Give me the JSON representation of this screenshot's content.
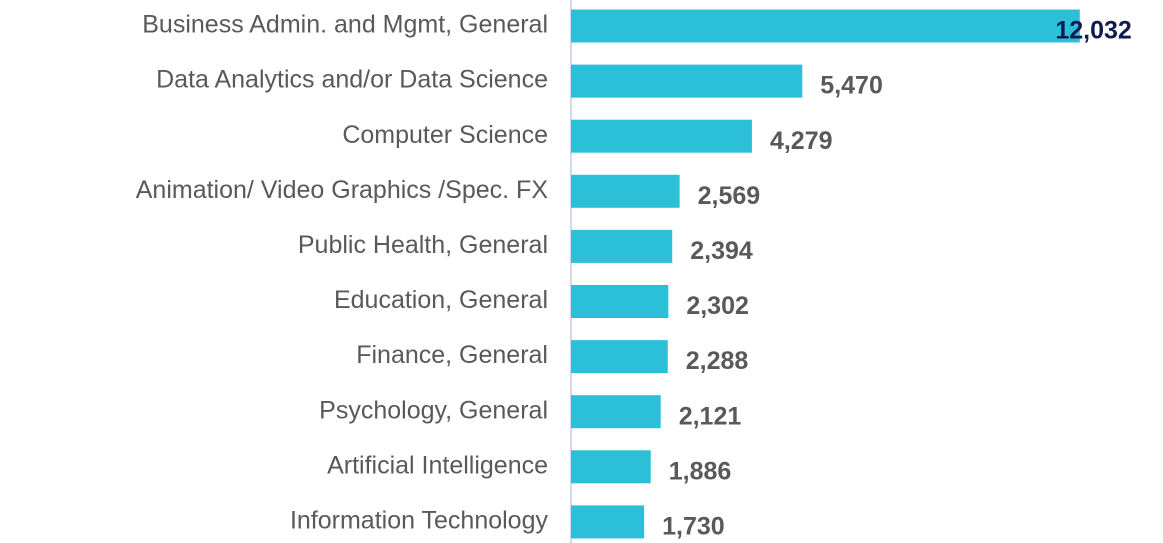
{
  "chart_data": {
    "type": "barh",
    "categories": [
      "Business Admin. and Mgmt, General",
      "Data Analytics and/or Data Science",
      "Computer Science",
      "Animation/ Video Graphics /Spec. FX",
      "Public Health, General",
      "Education, General",
      "Finance, General",
      "Psychology, General",
      "Artificial Intelligence",
      "Information Technology"
    ],
    "values": [
      12032,
      5470,
      4279,
      2569,
      2394,
      2302,
      2288,
      2121,
      1886,
      1730
    ],
    "value_labels": [
      "12,032",
      "5,470",
      "4,279",
      "2,569",
      "2,394",
      "2,302",
      "2,288",
      "2,121",
      "1,886",
      "1,730"
    ],
    "value_label_colors": [
      "#0d1b4f",
      "#595959",
      "#595959",
      "#595959",
      "#595959",
      "#595959",
      "#595959",
      "#595959",
      "#595959",
      "#595959"
    ],
    "color": "#2bbfd8",
    "xlim": [
      0,
      14000
    ]
  }
}
